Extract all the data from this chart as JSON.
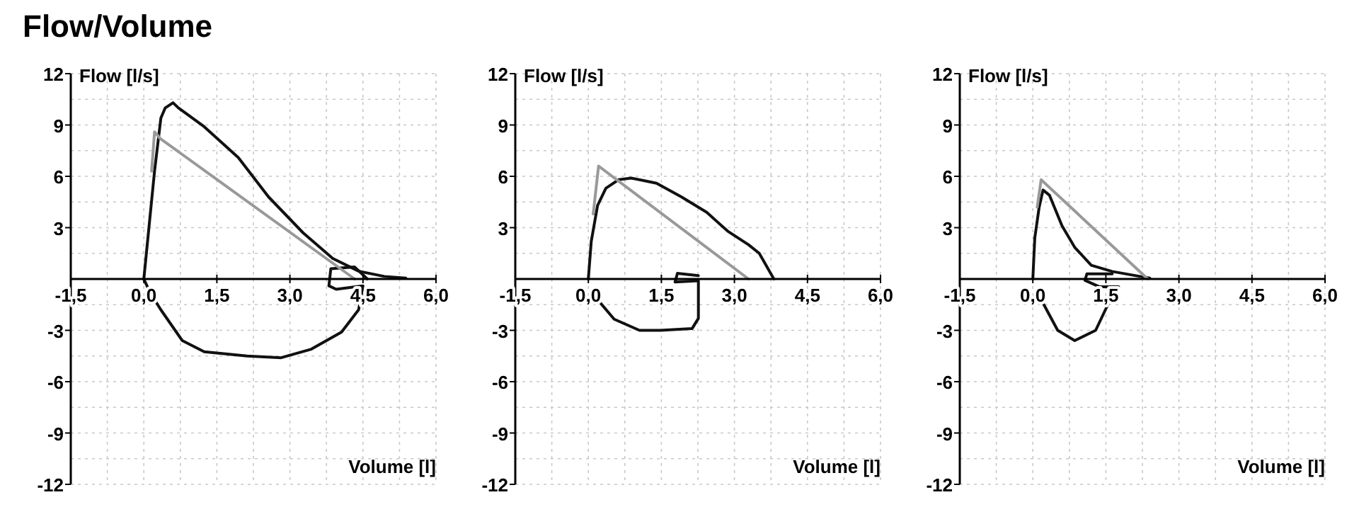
{
  "chart_data": [
    {
      "type": "line",
      "title": "Flow/Volume",
      "xlabel": "Volume [l]",
      "ylabel": "Flow [l/s]",
      "xlim": [
        -1.5,
        6.0
      ],
      "ylim": [
        -12,
        12
      ],
      "xticks": [
        {
          "value": -1.5,
          "label": "-1,5"
        },
        {
          "value": 0,
          "label": "0,0"
        },
        {
          "value": 1.5,
          "label": "1,5"
        },
        {
          "value": 3,
          "label": "3,0"
        },
        {
          "value": 4.5,
          "label": "4,5"
        },
        {
          "value": 6,
          "label": "6,0"
        }
      ],
      "yticks": [
        -12,
        -9,
        -6,
        -3,
        3,
        6,
        9,
        12
      ],
      "grid": true,
      "series": [
        {
          "color": "#111111",
          "x": [
            0,
            0.22,
            0.35,
            0.44,
            0.6,
            0.71,
            1.24,
            1.94,
            2.56,
            3.27,
            3.88,
            4.41,
            4.94,
            5.38
          ],
          "values": [
            0,
            6.3,
            9.4,
            10.0,
            10.3,
            10.0,
            8.9,
            7.1,
            4.8,
            2.7,
            1.2,
            0.46,
            0.15,
            0.05
          ]
        },
        {
          "color": "#111111",
          "x": [
            4.59,
            4.33,
            3.84,
            3.8,
            3.95,
            4.5,
            4.41,
            4.06,
            3.44,
            2.82,
            2.12,
            1.24,
            0.79,
            0.35,
            0.13,
            0
          ],
          "values": [
            0,
            0.7,
            0.6,
            -0.4,
            -0.6,
            -0.4,
            -1.8,
            -3.1,
            -4.1,
            -4.6,
            -4.5,
            -4.25,
            -3.6,
            -1.8,
            -0.8,
            0
          ]
        },
        {
          "color": "#999999",
          "x": [
            0.16,
            0.22,
            0.34,
            4.33
          ],
          "values": [
            6.3,
            8.6,
            8.2,
            0
          ]
        }
      ]
    },
    {
      "type": "line",
      "xlabel": "Volume [l]",
      "ylabel": "Flow [l/s]",
      "xlim": [
        -1.5,
        6.0
      ],
      "ylim": [
        -12,
        12
      ],
      "xticks": [
        {
          "value": -1.5,
          "label": "-1,5"
        },
        {
          "value": 0,
          "label": "0,0"
        },
        {
          "value": 1.5,
          "label": "1,5"
        },
        {
          "value": 3,
          "label": "3,0"
        },
        {
          "value": 4.5,
          "label": "4,5"
        },
        {
          "value": 6,
          "label": "6,0"
        }
      ],
      "yticks": [
        -12,
        -9,
        -6,
        -3,
        3,
        6,
        9,
        12
      ],
      "grid": true,
      "series": [
        {
          "color": "#111111",
          "x": [
            0,
            0.06,
            0.19,
            0.36,
            0.62,
            0.88,
            1.4,
            1.91,
            2.43,
            2.86,
            3.29,
            3.51,
            3.81
          ],
          "values": [
            0,
            2.2,
            4.3,
            5.3,
            5.8,
            5.9,
            5.6,
            4.8,
            3.9,
            2.8,
            2.0,
            1.5,
            0
          ]
        },
        {
          "color": "#111111",
          "x": [
            2.26,
            1.83,
            1.78,
            2.26,
            2.26,
            2.13,
            1.48,
            1.05,
            0.53,
            0.15
          ],
          "values": [
            0.2,
            0.33,
            -0.18,
            -0.1,
            -2.3,
            -2.9,
            -3.0,
            -3.0,
            -2.35,
            -1.07
          ]
        },
        {
          "color": "#999999",
          "x": [
            0.1,
            0.21,
            3.29
          ],
          "values": [
            3.8,
            6.6,
            0
          ]
        }
      ]
    },
    {
      "type": "line",
      "xlabel": "Volume [l]",
      "ylabel": "Flow [l/s]",
      "xlim": [
        -1.5,
        6.0
      ],
      "ylim": [
        -12,
        12
      ],
      "xticks": [
        {
          "value": -1.5,
          "label": "-1,5"
        },
        {
          "value": 0,
          "label": "0,0"
        },
        {
          "value": 1.5,
          "label": "1,5"
        },
        {
          "value": 3,
          "label": "3,0"
        },
        {
          "value": 4.5,
          "label": "4,5"
        },
        {
          "value": 6,
          "label": "6,0"
        }
      ],
      "yticks": [
        -12,
        -9,
        -6,
        -3,
        3,
        6,
        9,
        12
      ],
      "grid": true,
      "series": [
        {
          "color": "#111111",
          "x": [
            0,
            0.04,
            0.13,
            0.21,
            0.34,
            0.6,
            0.86,
            1.2,
            1.63,
            2.14,
            2.4
          ],
          "values": [
            0,
            2.4,
            4.2,
            5.2,
            4.9,
            3.1,
            1.85,
            0.8,
            0.44,
            0.18,
            0.05
          ]
        },
        {
          "color": "#111111",
          "x": [
            1.63,
            1.11,
            1.07,
            1.37,
            1.76,
            1.54,
            1.29,
            0.86,
            0.51,
            0.17
          ],
          "values": [
            0.3,
            0.3,
            -0.08,
            -0.46,
            -0.46,
            -1.5,
            -3.0,
            -3.6,
            -3.0,
            -1.2
          ]
        },
        {
          "color": "#999999",
          "x": [
            0.09,
            0.17,
            2.36
          ],
          "values": [
            4.2,
            5.8,
            0
          ]
        }
      ]
    }
  ]
}
